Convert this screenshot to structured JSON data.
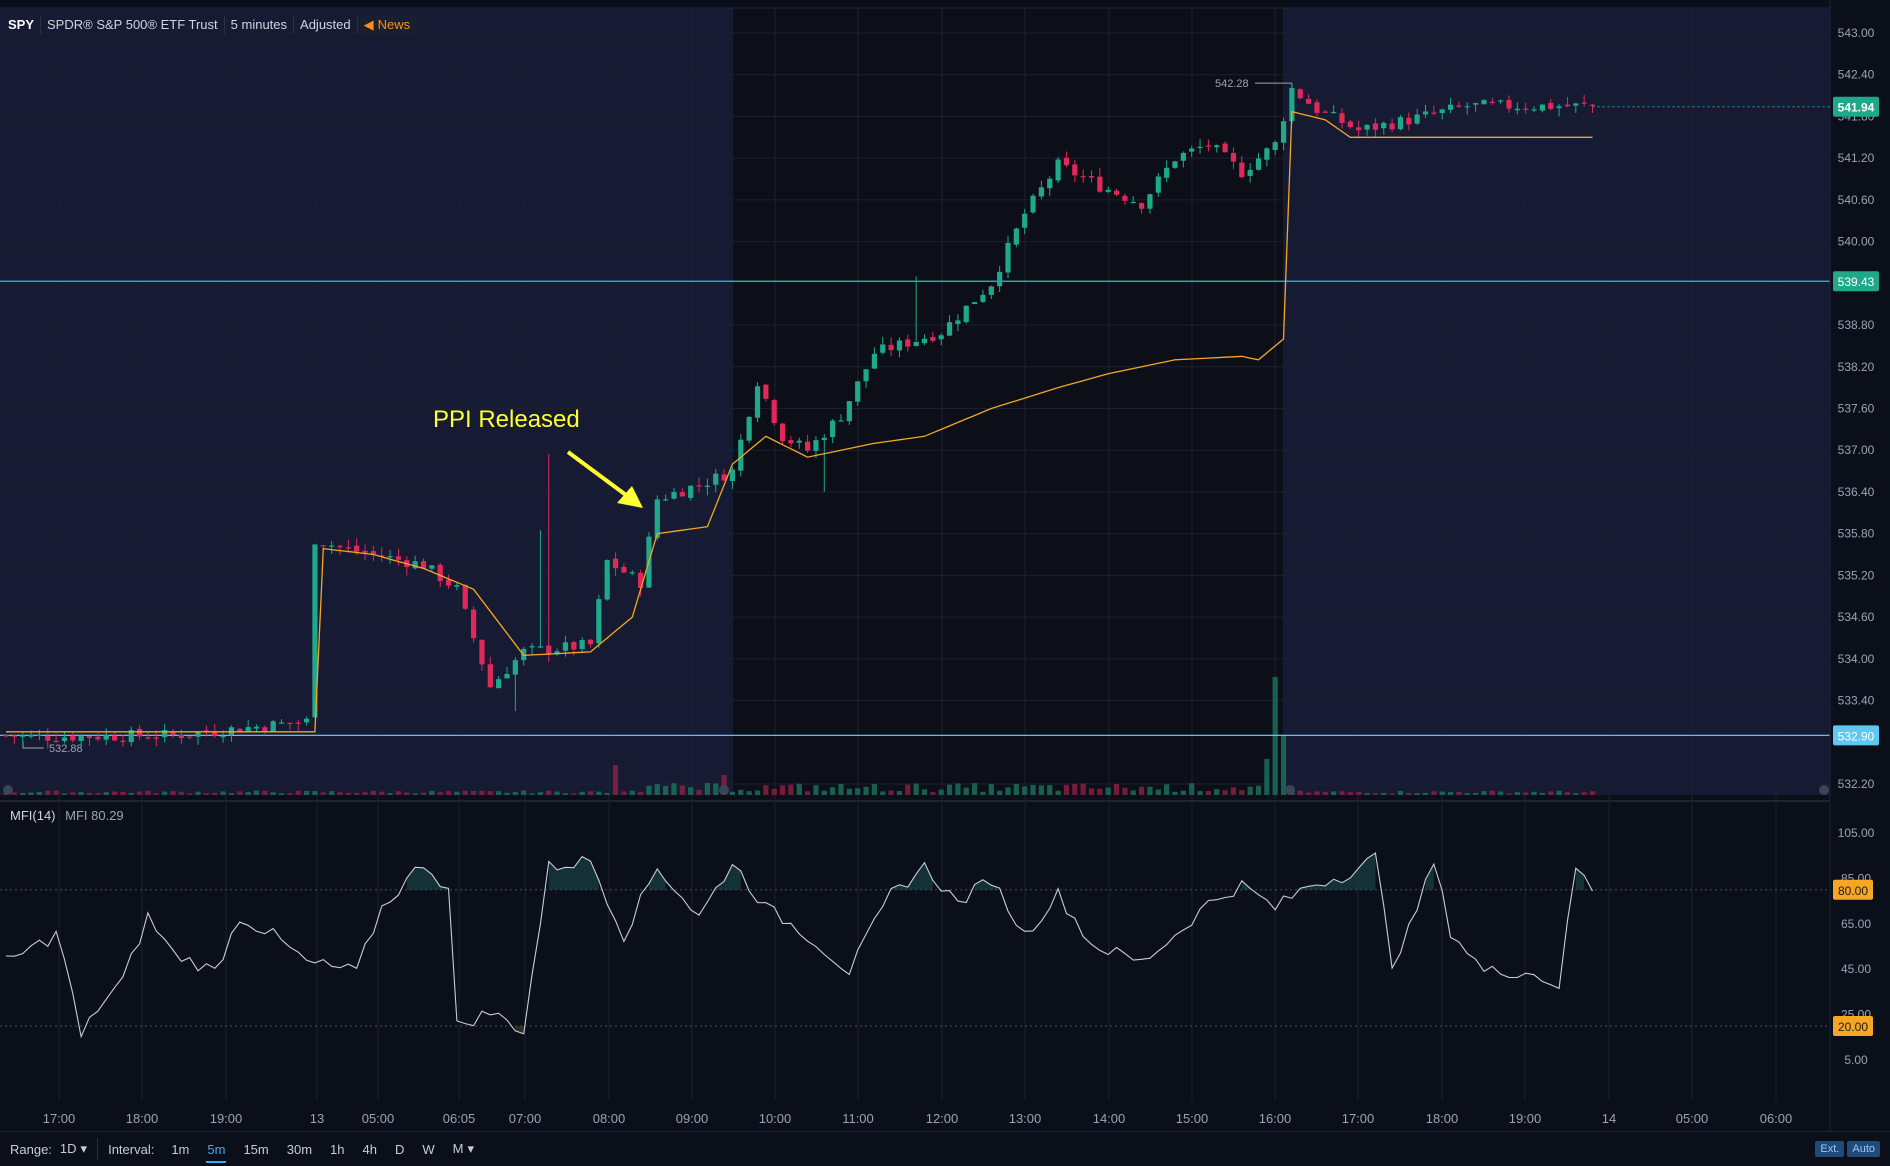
{
  "header": {
    "symbol": "SPY",
    "name": "SPDR® S&P 500® ETF Trust",
    "interval": "5 minutes",
    "adjusted": "Adjusted",
    "news": "News"
  },
  "annotation": {
    "text": "PPI Released"
  },
  "price_axis": {
    "ticks": [
      "543.00",
      "542.40",
      "541.80",
      "541.20",
      "540.60",
      "540.00",
      "539.43",
      "538.80",
      "538.20",
      "537.60",
      "537.00",
      "536.40",
      "535.80",
      "535.20",
      "534.60",
      "534.00",
      "533.40",
      "532.90",
      "532.20"
    ],
    "last_price": "541.94",
    "upper_line": "539.43",
    "lower_line": "532.90",
    "high_marker": "542.28",
    "low_marker": "532.88"
  },
  "mfi": {
    "label": "MFI(14)",
    "value_label": "MFI 80.29",
    "ticks": [
      "105.00",
      "85.00",
      "80.00",
      "65.00",
      "45.00",
      "25.00",
      "20.00",
      "5.00"
    ],
    "overbought": "80.00",
    "oversold": "20.00"
  },
  "time_axis": [
    "17:00",
    "18:00",
    "19:00",
    "13",
    "05:00",
    "06:05",
    "07:00",
    "08:00",
    "09:00",
    "10:00",
    "11:00",
    "12:00",
    "13:00",
    "14:00",
    "15:00",
    "16:00",
    "17:00",
    "18:00",
    "19:00",
    "14",
    "05:00",
    "06:00"
  ],
  "bottom_bar": {
    "range_label": "Range:",
    "range_value": "1D",
    "interval_label": "Interval:",
    "intervals": [
      "1m",
      "5m",
      "15m",
      "30m",
      "1h",
      "4h",
      "D",
      "W",
      "M"
    ],
    "active_interval": "5m",
    "ext": "Ext.",
    "auto": "Auto"
  },
  "colors": {
    "up": "#1fa88a",
    "down": "#e0285a",
    "vwap": "#f5a623",
    "hline": "#26c6c6",
    "ext_bg": "#161b33",
    "reg_bg": "#0c0f18",
    "annotation": "#ffff33"
  },
  "chart_data": {
    "type": "candlestick",
    "ylim": [
      532.0,
      543.2
    ],
    "mfi_ylim": [
      0,
      110
    ],
    "anchors_price": [
      [
        0,
        532.9
      ],
      [
        3,
        532.88
      ],
      [
        20,
        532.9
      ],
      [
        36,
        533.1
      ],
      [
        37,
        535.72
      ],
      [
        40,
        535.6
      ],
      [
        50,
        535.35
      ],
      [
        54,
        535.0
      ],
      [
        58,
        533.6
      ],
      [
        62,
        534.1
      ],
      [
        70,
        534.2
      ],
      [
        72,
        535.4
      ],
      [
        76,
        535.1
      ],
      [
        78,
        536.3
      ],
      [
        84,
        536.55
      ],
      [
        87,
        536.7
      ],
      [
        90,
        538.0
      ],
      [
        93,
        537.2
      ],
      [
        96,
        537.0
      ],
      [
        100,
        537.5
      ],
      [
        104,
        538.4
      ],
      [
        112,
        538.7
      ],
      [
        118,
        539.4
      ],
      [
        122,
        540.4
      ],
      [
        126,
        541.1
      ],
      [
        131,
        540.8
      ],
      [
        136,
        540.55
      ],
      [
        140,
        541.2
      ],
      [
        144,
        541.4
      ],
      [
        148,
        541.0
      ],
      [
        152,
        541.4
      ],
      [
        154,
        542.2
      ],
      [
        157,
        541.9
      ],
      [
        162,
        541.6
      ],
      [
        168,
        541.75
      ],
      [
        175,
        541.95
      ],
      [
        190,
        541.95
      ]
    ],
    "anchors_vwap": [
      [
        0,
        532.95
      ],
      [
        37,
        532.95
      ],
      [
        37,
        535.6
      ],
      [
        44,
        535.5
      ],
      [
        50,
        535.3
      ],
      [
        56,
        535.0
      ],
      [
        62,
        534.05
      ],
      [
        70,
        534.1
      ],
      [
        75,
        534.6
      ],
      [
        78,
        535.8
      ],
      [
        84,
        535.9
      ],
      [
        87,
        536.8
      ],
      [
        91,
        537.2
      ],
      [
        96,
        536.9
      ],
      [
        100,
        537.0
      ],
      [
        104,
        537.1
      ],
      [
        110,
        537.2
      ],
      [
        118,
        537.6
      ],
      [
        126,
        537.9
      ],
      [
        132,
        538.1
      ],
      [
        140,
        538.3
      ],
      [
        148,
        538.35
      ],
      [
        150,
        538.3
      ],
      [
        153,
        538.6
      ],
      [
        153,
        541.9
      ],
      [
        158,
        541.75
      ],
      [
        161,
        541.5
      ],
      [
        190,
        541.5
      ]
    ],
    "anchors_mfi": [
      [
        0,
        48
      ],
      [
        6,
        60
      ],
      [
        7,
        50
      ],
      [
        9,
        15
      ],
      [
        11,
        28
      ],
      [
        14,
        40
      ],
      [
        17,
        68
      ],
      [
        20,
        52
      ],
      [
        25,
        44
      ],
      [
        28,
        68
      ],
      [
        32,
        60
      ],
      [
        36,
        48
      ],
      [
        42,
        44
      ],
      [
        45,
        72
      ],
      [
        50,
        92
      ],
      [
        53,
        80
      ],
      [
        54,
        20
      ],
      [
        58,
        26
      ],
      [
        62,
        18
      ],
      [
        65,
        90
      ],
      [
        70,
        93
      ],
      [
        74,
        60
      ],
      [
        78,
        90
      ],
      [
        83,
        68
      ],
      [
        87,
        92
      ],
      [
        91,
        72
      ],
      [
        96,
        60
      ],
      [
        101,
        44
      ],
      [
        106,
        78
      ],
      [
        110,
        90
      ],
      [
        114,
        74
      ],
      [
        118,
        85
      ],
      [
        122,
        60
      ],
      [
        126,
        78
      ],
      [
        130,
        56
      ],
      [
        136,
        48
      ],
      [
        140,
        60
      ],
      [
        144,
        74
      ],
      [
        148,
        82
      ],
      [
        152,
        72
      ],
      [
        156,
        82
      ],
      [
        160,
        86
      ],
      [
        164,
        94
      ],
      [
        166,
        48
      ],
      [
        168,
        62
      ],
      [
        171,
        92
      ],
      [
        173,
        62
      ],
      [
        177,
        44
      ],
      [
        182,
        44
      ],
      [
        186,
        38
      ],
      [
        188,
        90
      ],
      [
        190,
        80
      ]
    ],
    "mfi_last": 80.29
  }
}
